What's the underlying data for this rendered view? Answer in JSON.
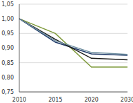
{
  "chart_data": {
    "type": "line",
    "categories": [
      "2010",
      "2015",
      "2020",
      "2030"
    ],
    "series": [
      {
        "color": "#7f9a3c",
        "values": [
          1.0,
          0.95,
          0.835,
          0.835
        ]
      },
      {
        "color": "#1f3a68",
        "values": [
          1.0,
          0.92,
          0.88,
          0.875
        ]
      },
      {
        "color": "#1a1a1a",
        "values": [
          1.0,
          0.93,
          0.865,
          0.86
        ]
      },
      {
        "color": "#6f8fa0",
        "values": [
          1.0,
          0.925,
          0.885,
          0.878
        ]
      }
    ],
    "ylim": [
      0.75,
      1.05
    ],
    "yticks": [
      {
        "value": 0.75,
        "label": "0,75"
      },
      {
        "value": 0.8,
        "label": "0,80"
      },
      {
        "value": 0.85,
        "label": "0,85"
      },
      {
        "value": 0.9,
        "label": "0,90"
      },
      {
        "value": 0.95,
        "label": "0,95"
      },
      {
        "value": 1.0,
        "label": "1,00"
      },
      {
        "value": 1.05,
        "label": "1,05"
      }
    ],
    "grid": true
  }
}
